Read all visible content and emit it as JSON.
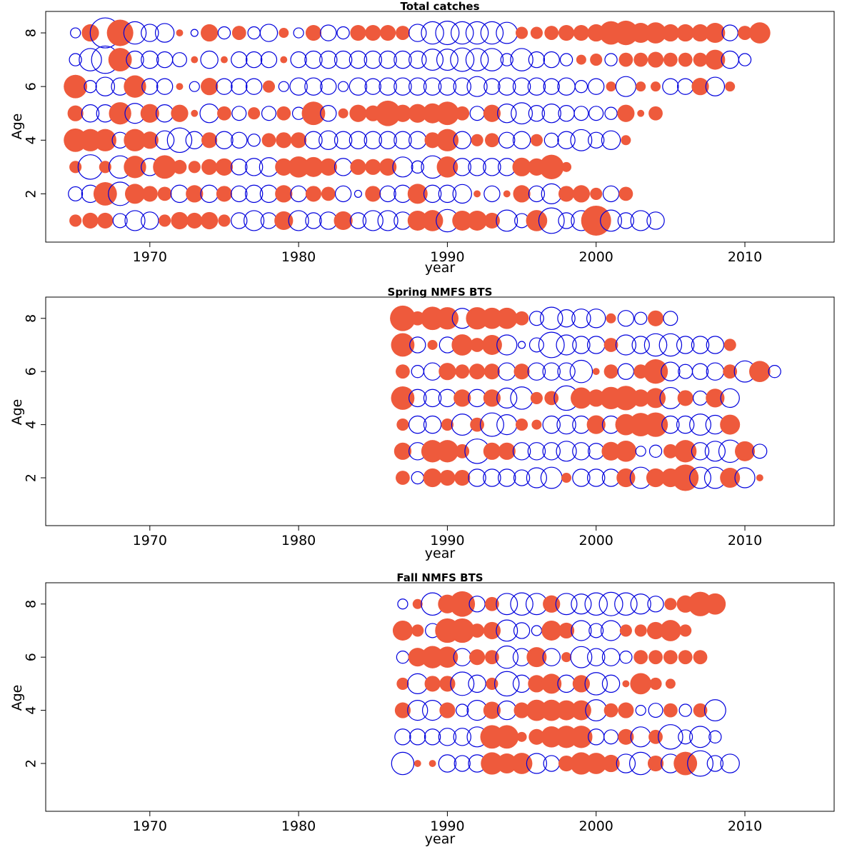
{
  "colors": {
    "positive": "#ee5a3c",
    "negative": "#0000dd",
    "frame": "#000000"
  },
  "chart_data": [
    {
      "type": "scatter",
      "subtype": "bubble",
      "title": "Total catches",
      "xlabel": "year",
      "ylabel": "Age",
      "xlim": [
        1963,
        2016
      ],
      "ylim": [
        0.2,
        8.8
      ],
      "xticks": [
        1970,
        1980,
        1990,
        2000,
        2010
      ],
      "yticks": [
        2,
        4,
        6,
        8
      ],
      "note": "filled red = positive residual, open blue = negative residual; circle radius ~ magnitude",
      "years": [
        1965,
        2014
      ],
      "ages": [
        1,
        8
      ],
      "rows": [
        {
          "age": 8,
          "v": [
            -0.2,
            0.6,
            -1.8,
            1.4,
            -1.0,
            -0.6,
            -0.7,
            0.1,
            -0.1,
            0.6,
            -0.3,
            0.4,
            -0.3,
            -0.6,
            0.2,
            -0.2,
            0.5,
            -0.5,
            -0.3,
            0.5,
            0.5,
            0.5,
            0.4,
            -0.6,
            -1.0,
            -1.1,
            -1.0,
            -1.0,
            -1.0,
            -0.9,
            0.3,
            0.3,
            0.4,
            0.5,
            0.5,
            0.6,
            1.1,
            1.2,
            0.8,
            0.9,
            0.6,
            0.6,
            0.6,
            0.8,
            -0.5,
            0.4,
            0.9
          ]
        },
        {
          "age": 7,
          "v": [
            -0.3,
            -1.0,
            -1.5,
            1.1,
            -0.6,
            -0.6,
            -0.5,
            -0.4,
            0.1,
            -0.6,
            0.1,
            -0.5,
            -0.5,
            -0.5,
            0.1,
            -0.5,
            -0.6,
            -0.6,
            -0.6,
            -0.6,
            -0.6,
            -0.6,
            -0.6,
            -0.6,
            -0.9,
            -0.9,
            -1.1,
            -1.0,
            -1.0,
            -0.3,
            -1.0,
            -0.5,
            -0.5,
            -0.3,
            0.2,
            0.3,
            -0.3,
            0.4,
            0.4,
            0.5,
            0.4,
            0.4,
            0.4,
            0.8,
            -0.6,
            -0.3
          ]
        },
        {
          "age": 6,
          "v": [
            1.1,
            -0.3,
            -0.7,
            -0.6,
            1.0,
            -0.5,
            -0.5,
            0.1,
            -0.2,
            0.6,
            -0.5,
            -0.5,
            -0.5,
            0.3,
            -0.2,
            -0.6,
            -0.6,
            -0.5,
            -0.2,
            -0.6,
            -0.5,
            -0.6,
            -0.6,
            -0.6,
            -0.6,
            -0.6,
            -0.6,
            -0.8,
            -0.5,
            -0.6,
            -0.6,
            -0.6,
            -0.5,
            -0.6,
            -0.3,
            -0.5,
            0.2,
            -0.8,
            0.2,
            0.2,
            -0.5,
            -0.5,
            0.6,
            -0.7,
            0.2
          ]
        },
        {
          "age": 5,
          "v": [
            0.5,
            -0.6,
            -0.6,
            1.0,
            -0.8,
            0.7,
            -0.6,
            0.6,
            0.1,
            -0.7,
            0.4,
            -0.4,
            0.3,
            -0.4,
            0.4,
            -0.3,
            1.1,
            -0.5,
            0.2,
            0.6,
            0.5,
            1.3,
            0.6,
            0.7,
            0.8,
            1.1,
            0.4,
            -0.4,
            0.6,
            -0.7,
            -0.9,
            -0.5,
            -0.7,
            -0.5,
            -0.4,
            -0.4,
            -0.3,
            0.6,
            0.1,
            0.4
          ]
        },
        {
          "age": 4,
          "v": [
            1.1,
            1.0,
            1.0,
            -0.5,
            1.0,
            0.6,
            -0.7,
            -1.2,
            -0.6,
            0.5,
            -0.6,
            -0.5,
            -0.3,
            0.4,
            0.5,
            0.5,
            -0.6,
            -0.7,
            -0.6,
            -0.6,
            -0.6,
            -0.6,
            -0.6,
            -0.6,
            0.5,
            1.0,
            -0.6,
            0.3,
            0.4,
            -0.5,
            -0.6,
            0.3,
            -0.4,
            -0.6,
            -0.9,
            -0.5,
            -0.7,
            0.2
          ]
        },
        {
          "age": 3,
          "v": [
            0.3,
            -1.2,
            0.3,
            -1.0,
            1.0,
            -0.6,
            1.1,
            0.4,
            0.3,
            0.5,
            0.6,
            -0.5,
            -0.6,
            -0.7,
            0.6,
            0.9,
            0.8,
            0.6,
            -0.6,
            0.5,
            0.5,
            0.6,
            -0.8,
            -0.3,
            -1.0,
            0.9,
            -0.6,
            -0.6,
            -0.6,
            -0.6,
            0.7,
            0.6,
            1.2,
            0.2
          ]
        },
        {
          "age": 2,
          "v": [
            -0.4,
            -0.6,
            1.1,
            -1.1,
            0.8,
            0.5,
            0.4,
            -0.6,
            0.6,
            -0.6,
            0.5,
            -0.5,
            -0.6,
            -0.6,
            0.6,
            -0.5,
            0.5,
            0.4,
            -0.5,
            -0.1,
            0.5,
            -0.5,
            -0.6,
            0.8,
            -0.6,
            -0.6,
            -0.7,
            0.1,
            -0.5,
            0.1,
            0.6,
            -0.5,
            -0.8,
            0.5,
            0.6,
            0.3,
            -0.5,
            0.4
          ]
        },
        {
          "age": 1,
          "v": [
            0.3,
            0.5,
            0.5,
            -0.4,
            -0.8,
            -0.6,
            0.3,
            0.6,
            0.5,
            0.6,
            0.3,
            -0.5,
            -0.8,
            -0.5,
            0.7,
            -0.8,
            -0.5,
            -0.6,
            0.7,
            -0.5,
            -0.8,
            -0.8,
            -0.6,
            0.8,
            0.9,
            -1.0,
            0.8,
            0.8,
            0.5,
            -0.9,
            -0.4,
            0.9,
            -1.3,
            -0.5,
            -0.8,
            1.8,
            -0.9,
            -0.5,
            -0.8,
            -0.6
          ]
        }
      ]
    },
    {
      "type": "scatter",
      "subtype": "bubble",
      "title": "Spring NMFS BTS",
      "xlabel": "year",
      "ylabel": "Age",
      "xlim": [
        1963,
        2016
      ],
      "ylim": [
        0.2,
        8.8
      ],
      "xticks": [
        1970,
        1980,
        1990,
        2000,
        2010
      ],
      "yticks": [
        2,
        4,
        6,
        8
      ],
      "years": [
        1987,
        2014
      ],
      "ages": [
        2,
        8
      ],
      "rows": [
        {
          "age": 8,
          "v": [
            1.3,
            0.4,
            1.1,
            1.0,
            -0.8,
            1.0,
            0.9,
            0.9,
            0.4,
            -0.4,
            -1.0,
            -0.6,
            -0.7,
            -0.7,
            0.2,
            -0.5,
            -0.3,
            0.5,
            -0.4
          ]
        },
        {
          "age": 7,
          "v": [
            1.1,
            -0.5,
            0.2,
            -0.5,
            0.9,
            0.4,
            0.8,
            -0.8,
            -0.1,
            -0.4,
            -1.3,
            -0.8,
            -0.6,
            -0.6,
            0.4,
            -0.8,
            -0.6,
            -1.0,
            -1.0,
            -0.6,
            -0.6,
            -0.6,
            0.3
          ]
        },
        {
          "age": 6,
          "v": [
            0.4,
            -0.3,
            -0.6,
            0.6,
            0.4,
            0.5,
            0.5,
            -0.6,
            0.5,
            -0.6,
            -0.6,
            -0.6,
            -1.0,
            0.1,
            0.4,
            -0.5,
            0.4,
            1.2,
            -0.7,
            -0.4,
            -0.5,
            -0.6,
            0.4,
            -0.9,
            0.9,
            -0.3
          ]
        },
        {
          "age": 5,
          "v": [
            1.1,
            -0.6,
            -0.6,
            -0.6,
            0.6,
            -0.6,
            0.6,
            -0.8,
            -1.0,
            0.3,
            0.4,
            -1.2,
            0.9,
            0.6,
            1.0,
            1.2,
            0.6,
            0.8,
            -0.9,
            0.5,
            -0.4,
            0.7,
            -0.7
          ]
        },
        {
          "age": 4,
          "v": [
            0.3,
            -0.6,
            -0.6,
            0.3,
            -0.9,
            0.4,
            -1.1,
            -0.8,
            0.3,
            0.2,
            -0.6,
            -0.7,
            -0.6,
            0.7,
            -0.6,
            0.9,
            1.1,
            1.2,
            -0.6,
            -0.6,
            -0.9,
            -0.7,
            0.8
          ]
        },
        {
          "age": 3,
          "v": [
            0.6,
            -0.6,
            1.0,
            1.0,
            0.4,
            -1.2,
            0.6,
            0.6,
            -0.6,
            -0.6,
            -0.6,
            -0.8,
            -0.6,
            -0.5,
            0.7,
            0.9,
            -0.2,
            -0.3,
            0.4,
            1.0,
            -0.6,
            -0.8,
            -1.0,
            0.8,
            -0.4
          ]
        },
        {
          "age": 2,
          "v": [
            0.4,
            -0.3,
            0.7,
            0.5,
            0.5,
            -0.6,
            -0.6,
            -0.6,
            -0.5,
            -0.8,
            -0.9,
            0.2,
            -0.6,
            -0.6,
            -0.6,
            0.7,
            -0.9,
            0.7,
            0.7,
            1.4,
            -0.9,
            -0.9,
            0.8,
            -0.8,
            0.1
          ]
        }
      ]
    },
    {
      "type": "scatter",
      "subtype": "bubble",
      "title": "Fall NMFS BTS",
      "xlabel": "year",
      "ylabel": "Age",
      "xlim": [
        1963,
        2016
      ],
      "ylim": [
        0.2,
        8.8
      ],
      "xticks": [
        1970,
        1980,
        1990,
        2000,
        2010
      ],
      "yticks": [
        2,
        4,
        6,
        8
      ],
      "years": [
        1987,
        2013
      ],
      "ages": [
        2,
        8
      ],
      "rows": [
        {
          "age": 8,
          "v": [
            -0.2,
            0.2,
            -1.0,
            0.7,
            1.3,
            -0.5,
            0.4,
            -0.9,
            -1.0,
            -0.9,
            0.6,
            -0.9,
            -0.8,
            -1.0,
            -1.1,
            -1.0,
            -0.8,
            -0.5,
            0.3,
            0.6,
            1.2,
            0.9
          ]
        },
        {
          "age": 7,
          "v": [
            0.8,
            0.3,
            -0.4,
            1.2,
            1.2,
            0.4,
            0.6,
            -0.9,
            -0.5,
            -0.2,
            0.8,
            0.5,
            -0.8,
            -0.4,
            -0.8,
            0.3,
            0.3,
            0.6,
            0.9,
            0.3
          ]
        },
        {
          "age": 6,
          "v": [
            -0.3,
            0.7,
            1.0,
            0.9,
            -0.6,
            0.5,
            0.4,
            -1.0,
            -0.6,
            0.8,
            -0.6,
            0.2,
            -0.9,
            -0.6,
            -0.6,
            -0.3,
            0.4,
            0.4,
            0.4,
            0.4,
            0.4
          ]
        },
        {
          "age": 5,
          "v": [
            0.3,
            -0.8,
            0.5,
            0.5,
            -1.1,
            -0.6,
            0.3,
            -1.2,
            -0.6,
            0.6,
            0.8,
            -0.6,
            0.6,
            -1.0,
            -0.6,
            0.1,
            0.9,
            0.3,
            0.2
          ]
        },
        {
          "age": 4,
          "v": [
            0.5,
            -0.8,
            -0.8,
            0.5,
            -0.3,
            -0.8,
            0.6,
            -0.7,
            0.5,
            0.9,
            0.9,
            0.8,
            0.8,
            -0.9,
            0.4,
            0.5,
            -0.2,
            -0.4,
            0.4,
            -0.3,
            0.4,
            -0.9
          ]
        },
        {
          "age": 3,
          "v": [
            -0.5,
            -0.5,
            -0.5,
            -0.6,
            -0.6,
            -0.8,
            1.1,
            1.1,
            0.2,
            0.5,
            0.9,
            1.0,
            1.0,
            -0.5,
            -0.4,
            0.5,
            -0.8,
            0.4,
            -1.2,
            -0.4,
            -0.9,
            -0.3
          ]
        },
        {
          "age": 2,
          "v": [
            -1.0,
            0.1,
            0.1,
            -0.6,
            -0.5,
            -0.6,
            1.0,
            0.8,
            0.9,
            -0.8,
            -0.5,
            0.5,
            1.0,
            0.9,
            0.6,
            -0.7,
            -1.0,
            0.5,
            -0.7,
            1.1,
            -1.3,
            -0.5,
            -0.7
          ]
        }
      ]
    }
  ]
}
